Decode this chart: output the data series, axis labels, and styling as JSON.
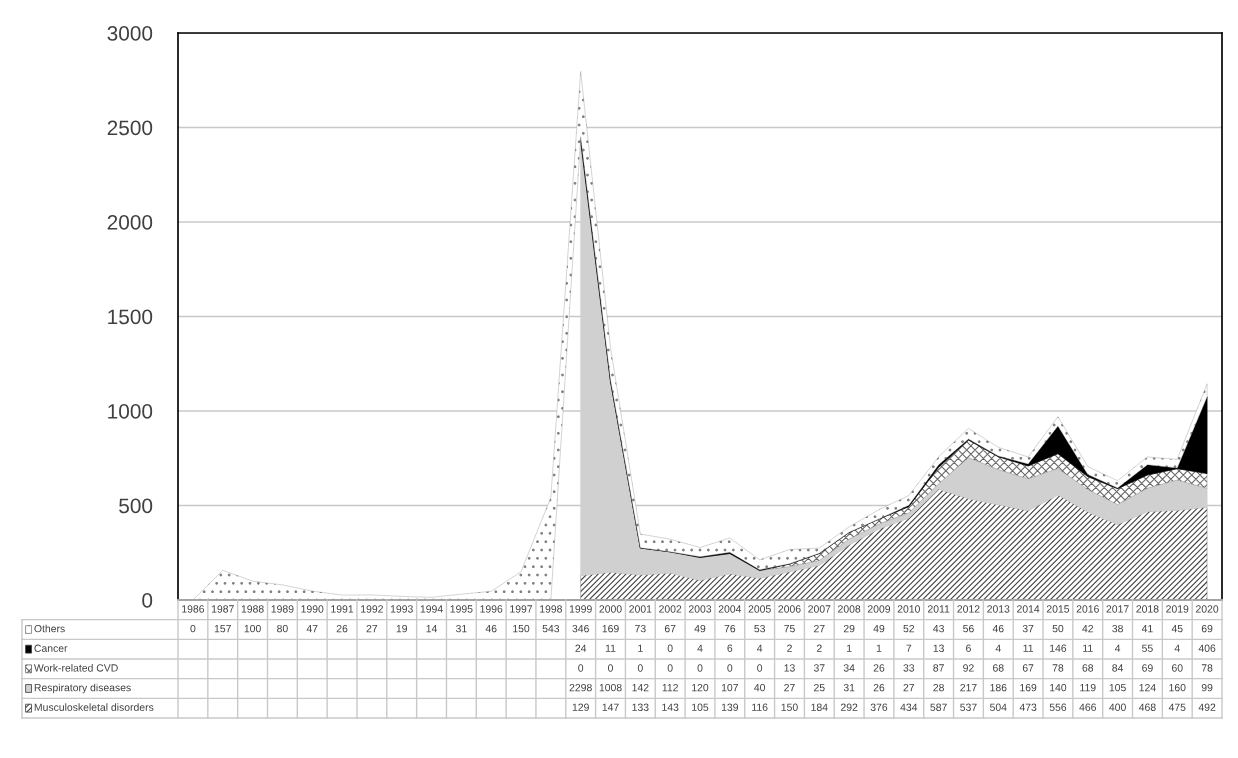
{
  "chart_data": {
    "type": "area",
    "stacked": true,
    "categories": [
      "1986",
      "1987",
      "1988",
      "1989",
      "1990",
      "1991",
      "1992",
      "1993",
      "1994",
      "1995",
      "1996",
      "1997",
      "1998",
      "1999",
      "2000",
      "2001",
      "2002",
      "2003",
      "2004",
      "2005",
      "2006",
      "2007",
      "2008",
      "2009",
      "2010",
      "2011",
      "2012",
      "2013",
      "2014",
      "2015",
      "2016",
      "2017",
      "2018",
      "2019",
      "2020"
    ],
    "series": [
      {
        "name": "Musculoskeletal disorders",
        "color": "#404040",
        "values": [
          null,
          null,
          null,
          null,
          null,
          null,
          null,
          null,
          null,
          null,
          null,
          null,
          null,
          129,
          147,
          133,
          143,
          105,
          139,
          116,
          150,
          184,
          292,
          376,
          434,
          587,
          537,
          504,
          473,
          556,
          466,
          400,
          468,
          475,
          492
        ]
      },
      {
        "name": "Respiratory diseases",
        "color": "#d0d0d0",
        "values": [
          null,
          null,
          null,
          null,
          null,
          null,
          null,
          null,
          null,
          null,
          null,
          null,
          null,
          2298,
          1008,
          142,
          112,
          120,
          107,
          40,
          27,
          25,
          31,
          26,
          27,
          28,
          217,
          186,
          169,
          140,
          119,
          105,
          124,
          160,
          99
        ]
      },
      {
        "name": "Work-related CVD",
        "color": "#686868",
        "values": [
          null,
          null,
          null,
          null,
          null,
          null,
          null,
          null,
          null,
          null,
          null,
          null,
          null,
          0,
          0,
          0,
          0,
          0,
          0,
          0,
          13,
          37,
          34,
          26,
          33,
          87,
          92,
          68,
          67,
          78,
          68,
          84,
          69,
          60,
          78
        ]
      },
      {
        "name": "Cancer",
        "color": "#000000",
        "values": [
          null,
          null,
          null,
          null,
          null,
          null,
          null,
          null,
          null,
          null,
          null,
          null,
          null,
          24,
          11,
          1,
          0,
          4,
          6,
          4,
          2,
          2,
          1,
          1,
          7,
          13,
          6,
          4,
          11,
          146,
          11,
          4,
          55,
          4,
          406
        ]
      },
      {
        "name": "Others",
        "color": "#808080",
        "values": [
          0,
          157,
          100,
          80,
          47,
          26,
          27,
          19,
          14,
          31,
          46,
          150,
          543,
          346,
          169,
          73,
          67,
          49,
          76,
          53,
          75,
          27,
          29,
          49,
          52,
          43,
          56,
          46,
          37,
          50,
          42,
          38,
          41,
          45,
          69
        ]
      }
    ],
    "ylim": [
      0,
      3000
    ],
    "yticks": [
      0,
      500,
      1000,
      1500,
      2000,
      2500,
      3000
    ],
    "grid": "y",
    "legend": "bottom",
    "data_labels": true
  }
}
